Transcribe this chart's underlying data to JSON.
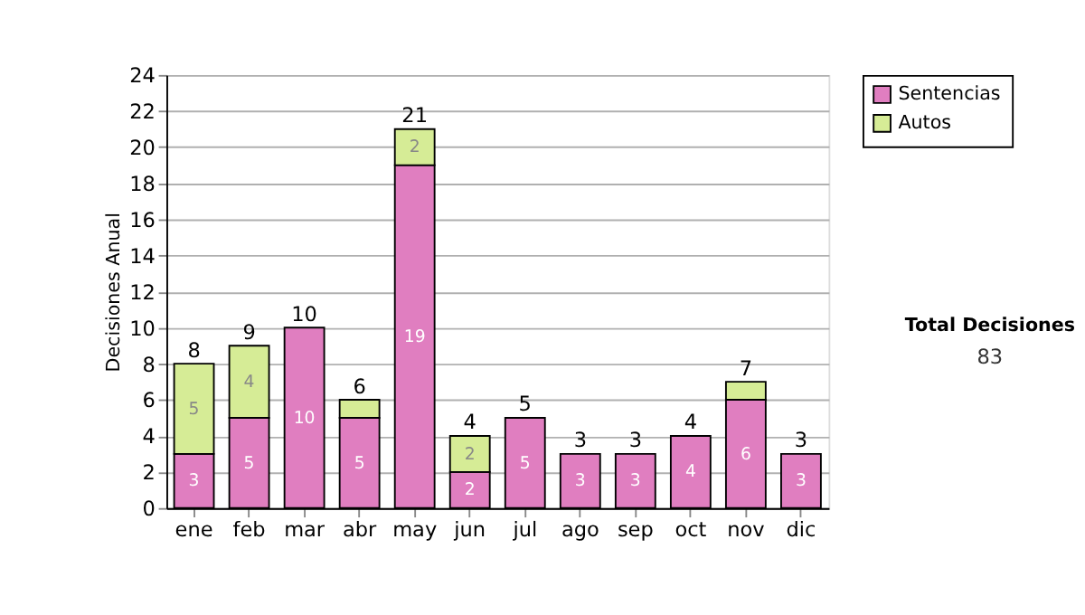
{
  "chart_data": {
    "type": "bar",
    "stacked": true,
    "ylabel": "Decisiones Anual",
    "categories": [
      "ene",
      "feb",
      "mar",
      "abr",
      "may",
      "jun",
      "jul",
      "ago",
      "sep",
      "oct",
      "nov",
      "dic"
    ],
    "series": [
      {
        "name": "Sentencias",
        "color": "#e07ec0",
        "values": [
          3,
          5,
          10,
          5,
          19,
          2,
          5,
          3,
          3,
          4,
          6,
          3
        ],
        "value_labels": [
          "3",
          "5",
          "10",
          "5",
          "19",
          "2",
          "5",
          "3",
          "3",
          "4",
          "6",
          "3"
        ]
      },
      {
        "name": "Autos",
        "color": "#d6ec96",
        "values": [
          5,
          4,
          null,
          1,
          2,
          2,
          null,
          null,
          null,
          null,
          1,
          null
        ],
        "value_labels": [
          "5",
          "4",
          null,
          null,
          "2",
          "2",
          null,
          null,
          null,
          null,
          null,
          null
        ]
      }
    ],
    "totals": [
      "8",
      "9",
      "10",
      "6",
      "21",
      "4",
      "5",
      "3",
      "3",
      "4",
      "7",
      "3"
    ],
    "ylim": [
      0,
      24
    ],
    "yticks": [
      0,
      2,
      4,
      6,
      8,
      10,
      12,
      14,
      16,
      18,
      20,
      22,
      24
    ],
    "grid": "y",
    "legend": "right",
    "annotations": [
      "Total Decisiones",
      "83"
    ]
  }
}
